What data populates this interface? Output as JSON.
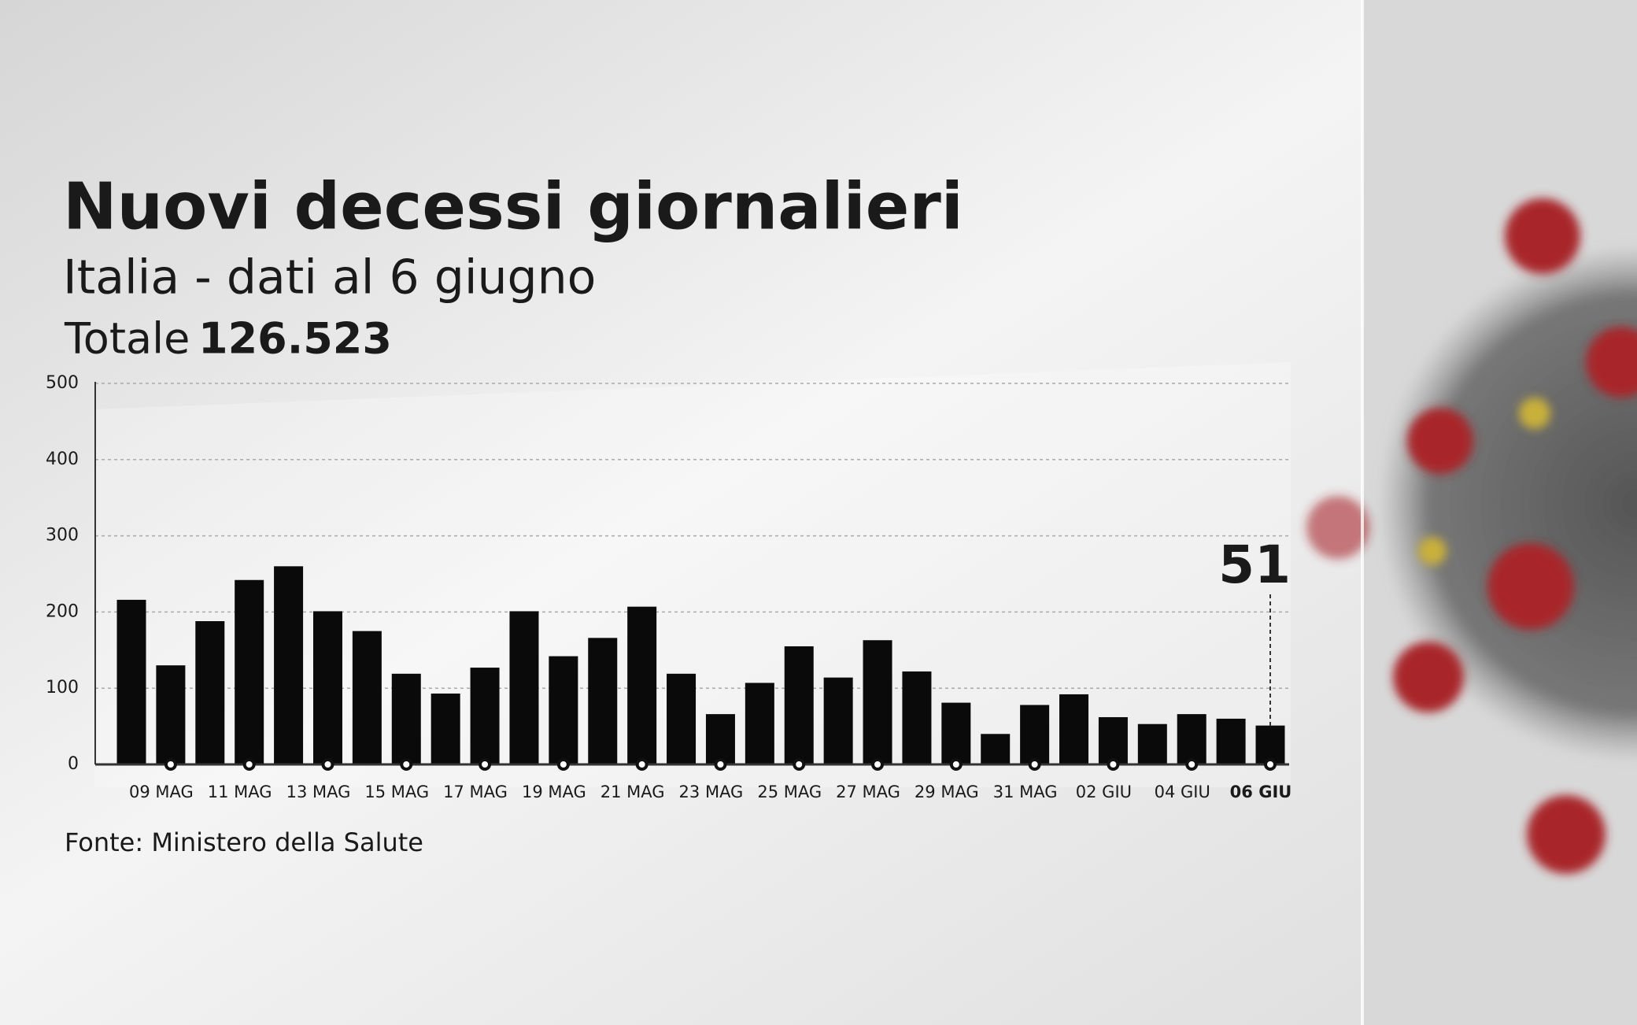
{
  "chart_data": {
    "type": "bar",
    "title": "Nuovi decessi giornalieri",
    "subtitle": "Italia - dati al 6 giugno",
    "total_label": "Totale",
    "total_value": "126.523",
    "source": "Fonte: Ministero della Salute",
    "categories": [
      null,
      "09 MAG",
      null,
      "11 MAG",
      null,
      "13 MAG",
      null,
      "15 MAG",
      null,
      "17 MAG",
      null,
      "19 MAG",
      null,
      "21 MAG",
      null,
      "23 MAG",
      null,
      "25 MAG",
      null,
      "27 MAG",
      null,
      "29 MAG",
      null,
      "31 MAG",
      null,
      "02 GIU",
      null,
      "04 GIU",
      null,
      "06 GIU"
    ],
    "values": [
      216,
      130,
      188,
      242,
      260,
      201,
      175,
      119,
      93,
      127,
      201,
      142,
      166,
      207,
      119,
      66,
      107,
      155,
      114,
      163,
      122,
      81,
      40,
      78,
      92,
      62,
      53,
      66,
      60,
      51
    ],
    "color": "#0a0a0a",
    "highlight_color": "#c8102e",
    "ylim": [
      0,
      500
    ],
    "yticks": [
      0,
      100,
      200,
      300,
      400,
      500
    ],
    "grid": true
  }
}
